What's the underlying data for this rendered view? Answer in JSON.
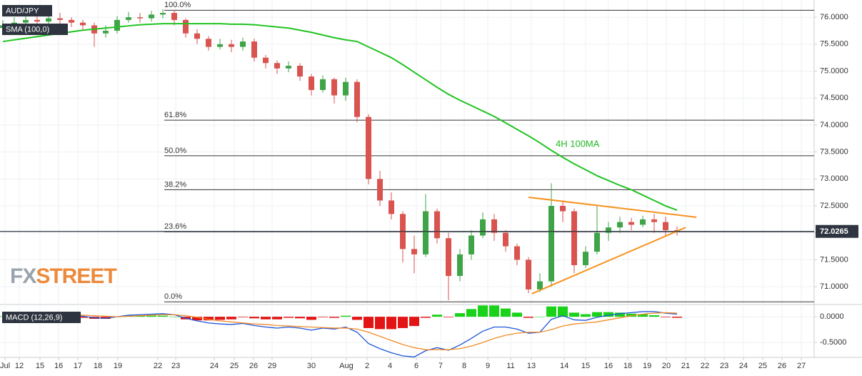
{
  "chart_data": [
    {
      "type": "candlestick",
      "legend": [
        "AUD/JPY",
        "SMA (100,0)"
      ],
      "watermark": [
        "FX",
        "STREET"
      ],
      "annotation": "4H 100MA",
      "up_color": "#3fa447",
      "down_color": "#d9534f",
      "x": [
        0,
        1,
        2,
        3,
        4,
        5,
        6,
        7,
        8,
        9,
        10,
        11,
        12,
        13,
        14,
        15,
        16,
        17,
        18,
        19,
        20,
        21,
        22,
        23,
        24,
        25,
        26,
        27,
        28,
        29,
        30,
        31,
        32,
        33,
        34,
        35,
        36,
        37,
        38,
        39,
        40,
        41,
        42,
        43,
        44,
        45,
        46,
        47,
        48,
        49,
        50,
        51,
        52,
        53,
        54,
        55,
        56,
        57,
        58,
        59
      ],
      "open": [
        75.8,
        75.85,
        75.9,
        75.95,
        75.92,
        75.98,
        75.95,
        75.9,
        75.85,
        75.7,
        75.75,
        75.95,
        76.0,
        75.98,
        76.05,
        76.08,
        75.95,
        75.7,
        75.6,
        75.45,
        75.5,
        75.45,
        75.55,
        75.25,
        75.15,
        75.05,
        75.1,
        74.9,
        74.65,
        74.85,
        74.55,
        74.8,
        74.15,
        73.0,
        72.6,
        72.35,
        71.7,
        71.6,
        72.4,
        71.9,
        71.2,
        71.6,
        71.95,
        72.25,
        72.0,
        71.75,
        71.5,
        70.95,
        71.1,
        72.5,
        72.4,
        71.4,
        71.65,
        72.0,
        72.1,
        72.2,
        72.15,
        72.25,
        72.2,
        72.05
      ],
      "high": [
        75.95,
        76.0,
        76.05,
        76.1,
        76.05,
        76.08,
        76.0,
        75.95,
        75.9,
        75.85,
        76.02,
        76.1,
        76.08,
        76.12,
        76.15,
        76.12,
        75.98,
        75.78,
        75.65,
        75.6,
        75.58,
        75.62,
        75.6,
        75.3,
        75.2,
        75.18,
        75.15,
        74.95,
        74.92,
        74.88,
        74.88,
        74.85,
        74.2,
        73.15,
        72.75,
        72.4,
        71.95,
        72.72,
        72.45,
        72.0,
        71.7,
        72.05,
        72.38,
        72.35,
        72.05,
        71.8,
        71.55,
        71.25,
        72.92,
        72.6,
        72.45,
        71.75,
        72.5,
        72.2,
        72.3,
        72.28,
        72.32,
        72.35,
        72.3,
        72.12
      ],
      "low": [
        75.7,
        75.78,
        75.85,
        75.82,
        75.85,
        75.88,
        75.82,
        75.75,
        75.45,
        75.62,
        75.7,
        75.9,
        75.9,
        75.92,
        75.98,
        75.85,
        75.62,
        75.5,
        75.38,
        75.4,
        75.35,
        75.38,
        75.18,
        75.05,
        74.95,
        74.98,
        74.82,
        74.55,
        74.6,
        74.4,
        74.45,
        74.05,
        72.9,
        72.5,
        72.25,
        71.45,
        71.25,
        71.55,
        71.8,
        70.75,
        71.1,
        71.5,
        71.9,
        71.85,
        71.65,
        71.4,
        70.88,
        70.9,
        71.0,
        72.2,
        71.25,
        71.35,
        71.6,
        71.85,
        72.0,
        72.05,
        72.1,
        72.0,
        71.95,
        71.95
      ],
      "close": [
        75.85,
        75.9,
        75.95,
        75.92,
        75.98,
        75.95,
        75.9,
        75.85,
        75.7,
        75.75,
        75.95,
        76.0,
        75.98,
        76.05,
        76.08,
        75.95,
        75.7,
        75.6,
        75.45,
        75.5,
        75.45,
        75.55,
        75.25,
        75.15,
        75.05,
        75.1,
        74.9,
        74.65,
        74.85,
        74.55,
        74.8,
        74.15,
        73.0,
        72.6,
        72.35,
        71.7,
        71.6,
        72.4,
        71.9,
        71.2,
        71.6,
        71.95,
        72.25,
        72.0,
        71.75,
        71.5,
        70.95,
        71.1,
        72.5,
        72.4,
        71.4,
        71.65,
        72.0,
        72.1,
        72.2,
        72.15,
        72.25,
        72.2,
        72.05,
        72.03
      ],
      "series": [
        {
          "color": "#22c322",
          "values": [
            75.55,
            75.58,
            75.61,
            75.64,
            75.67,
            75.7,
            75.73,
            75.76,
            75.78,
            75.8,
            75.82,
            75.84,
            75.86,
            75.87,
            75.88,
            75.88,
            75.88,
            75.88,
            75.88,
            75.88,
            75.87,
            75.87,
            75.86,
            75.84,
            75.82,
            75.8,
            75.76,
            75.72,
            75.67,
            75.62,
            75.58,
            75.55,
            75.45,
            75.35,
            75.25,
            75.12,
            74.98,
            74.84,
            74.7,
            74.57,
            74.46,
            74.36,
            74.26,
            74.16,
            74.04,
            73.92,
            73.8,
            73.67,
            73.53,
            73.4,
            73.28,
            73.17,
            73.06,
            72.97,
            72.88,
            72.8,
            72.7,
            72.6,
            72.5,
            72.42
          ]
        }
      ],
      "levels": [
        {
          "label": "100.0%",
          "value": 76.13
        },
        {
          "label": "61.8%",
          "value": 74.09
        },
        {
          "label": "50.0%",
          "value": 73.43
        },
        {
          "label": "38.2%",
          "value": 72.8
        },
        {
          "label": "23.6%",
          "value": 72.02
        },
        {
          "label": "0.0%",
          "value": 70.72
        }
      ],
      "trendlines": [
        {
          "x": [
            46.0,
            60.7
          ],
          "values": [
            72.66,
            72.29
          ]
        },
        {
          "x": [
            46.3,
            59.75
          ],
          "values": [
            70.87,
            72.1
          ]
        }
      ],
      "trendline_color": "#f7931e",
      "last_price": 72.0265,
      "xlim": [
        -0.25,
        71.0
      ],
      "ylim": [
        70.67,
        76.32
      ],
      "yticks": [
        {
          "value": 71,
          "label": "71.0000"
        },
        {
          "value": 71.5,
          "label": "71.5000"
        },
        {
          "value": 72,
          "label": "72.0000"
        },
        {
          "value": 72.5,
          "label": "72.5000"
        },
        {
          "value": 73,
          "label": "73.0000"
        },
        {
          "value": 73.5,
          "label": "73.5000"
        },
        {
          "value": 74,
          "label": "74.0000"
        },
        {
          "value": 74.5,
          "label": "74.5000"
        },
        {
          "value": 75,
          "label": "75.0000"
        },
        {
          "value": 75.5,
          "label": "75.5000"
        },
        {
          "value": 76,
          "label": "76.0000"
        }
      ],
      "grid": true
    },
    {
      "type": "macd",
      "legend": "MACD (12,26,9)",
      "x": [
        0,
        1,
        2,
        3,
        4,
        5,
        6,
        7,
        8,
        9,
        10,
        11,
        12,
        13,
        14,
        15,
        16,
        17,
        18,
        19,
        20,
        21,
        22,
        23,
        24,
        25,
        26,
        27,
        28,
        29,
        30,
        31,
        32,
        33,
        34,
        35,
        36,
        37,
        38,
        39,
        40,
        41,
        42,
        43,
        44,
        45,
        46,
        47,
        48,
        49,
        50,
        51,
        52,
        53,
        54,
        55,
        56,
        57,
        58,
        59
      ],
      "series": [
        {
          "kind": "bar",
          "up_color": "#19d219",
          "down_color": "#e31414",
          "values": [
            0.01,
            0.01,
            0.02,
            0.01,
            0,
            -0.01,
            -0.01,
            -0.02,
            -0.04,
            -0.04,
            0,
            0.02,
            0.02,
            0.02,
            0.02,
            0,
            -0.05,
            -0.07,
            -0.07,
            -0.06,
            -0.05,
            -0.01,
            -0.03,
            -0.05,
            -0.05,
            -0.02,
            -0.03,
            -0.06,
            -0.01,
            -0.02,
            0.02,
            -0.06,
            -0.22,
            -0.24,
            -0.24,
            -0.22,
            -0.18,
            -0.02,
            0.04,
            -0.01,
            0.07,
            0.15,
            0.22,
            0.22,
            0.16,
            0.08,
            -0.02,
            0,
            0.2,
            0.2,
            0.08,
            0.05,
            0.09,
            0.09,
            0.08,
            0.06,
            0.05,
            0.03,
            -0.01,
            -0.02
          ]
        },
        {
          "kind": "line",
          "color": "#1f56d8",
          "values": [
            0.03,
            0.04,
            0.05,
            0.05,
            0.04,
            0.03,
            0.02,
            0.01,
            -0.02,
            -0.03,
            0.0,
            0.03,
            0.04,
            0.05,
            0.06,
            0.04,
            -0.03,
            -0.08,
            -0.12,
            -0.14,
            -0.15,
            -0.13,
            -0.17,
            -0.2,
            -0.22,
            -0.2,
            -0.22,
            -0.26,
            -0.22,
            -0.24,
            -0.2,
            -0.3,
            -0.52,
            -0.62,
            -0.7,
            -0.76,
            -0.78,
            -0.66,
            -0.6,
            -0.65,
            -0.55,
            -0.42,
            -0.28,
            -0.2,
            -0.2,
            -0.24,
            -0.32,
            -0.3,
            -0.05,
            0.02,
            -0.06,
            -0.07,
            -0.01,
            0.03,
            0.06,
            0.08,
            0.1,
            0.1,
            0.07,
            0.05
          ]
        },
        {
          "kind": "line",
          "color": "#f28c28",
          "values": [
            0.02,
            0.03,
            0.03,
            0.04,
            0.04,
            0.04,
            0.03,
            0.03,
            0.02,
            0.01,
            0.0,
            0.01,
            0.02,
            0.03,
            0.04,
            0.04,
            0.02,
            -0.01,
            -0.05,
            -0.08,
            -0.1,
            -0.12,
            -0.14,
            -0.15,
            -0.17,
            -0.18,
            -0.19,
            -0.2,
            -0.21,
            -0.22,
            -0.22,
            -0.24,
            -0.3,
            -0.38,
            -0.46,
            -0.54,
            -0.6,
            -0.64,
            -0.64,
            -0.64,
            -0.62,
            -0.57,
            -0.5,
            -0.42,
            -0.36,
            -0.32,
            -0.3,
            -0.3,
            -0.25,
            -0.18,
            -0.14,
            -0.12,
            -0.1,
            -0.06,
            -0.02,
            0.02,
            0.05,
            0.07,
            0.08,
            0.07
          ]
        }
      ],
      "xlim": [
        -0.25,
        71.0
      ],
      "ylim": [
        -0.79,
        0.21
      ],
      "yticks": [
        {
          "value": 0,
          "label": "0.0000"
        },
        {
          "value": -0.5,
          "label": "-0.5000"
        }
      ],
      "xticks": [
        {
          "value": 0.19,
          "label": "Jul"
        },
        {
          "value": 1.44,
          "label": "12"
        },
        {
          "value": 3.25,
          "label": "15"
        },
        {
          "value": 4.88,
          "label": "16"
        },
        {
          "value": 6.56,
          "label": "17"
        },
        {
          "value": 8.31,
          "label": "18"
        },
        {
          "value": 10.06,
          "label": "19"
        },
        {
          "value": 13.56,
          "label": "22"
        },
        {
          "value": 15.13,
          "label": "23"
        },
        {
          "value": 18.5,
          "label": "24"
        },
        {
          "value": 20.25,
          "label": "25"
        },
        {
          "value": 21.94,
          "label": "26"
        },
        {
          "value": 23.56,
          "label": "29"
        },
        {
          "value": 27,
          "label": "30"
        },
        {
          "value": 30.06,
          "label": "Aug"
        },
        {
          "value": 31.88,
          "label": "2"
        },
        {
          "value": 33.88,
          "label": "4"
        },
        {
          "value": 36.19,
          "label": "6"
        },
        {
          "value": 38.31,
          "label": "7"
        },
        {
          "value": 40.38,
          "label": "8"
        },
        {
          "value": 42.44,
          "label": "9"
        },
        {
          "value": 44.44,
          "label": "11"
        },
        {
          "value": 46.25,
          "label": "13"
        },
        {
          "value": 49.13,
          "label": "14"
        },
        {
          "value": 51,
          "label": "15"
        },
        {
          "value": 53,
          "label": "16"
        },
        {
          "value": 54.69,
          "label": "18"
        },
        {
          "value": 56.38,
          "label": "19"
        },
        {
          "value": 58.06,
          "label": "20"
        },
        {
          "value": 59.75,
          "label": "21"
        },
        {
          "value": 61.44,
          "label": "22"
        },
        {
          "value": 63.13,
          "label": "23"
        },
        {
          "value": 64.81,
          "label": "24"
        },
        {
          "value": 66.5,
          "label": "25"
        },
        {
          "value": 68.19,
          "label": "26"
        },
        {
          "value": 69.88,
          "label": "27"
        }
      ],
      "grid": true
    }
  ]
}
